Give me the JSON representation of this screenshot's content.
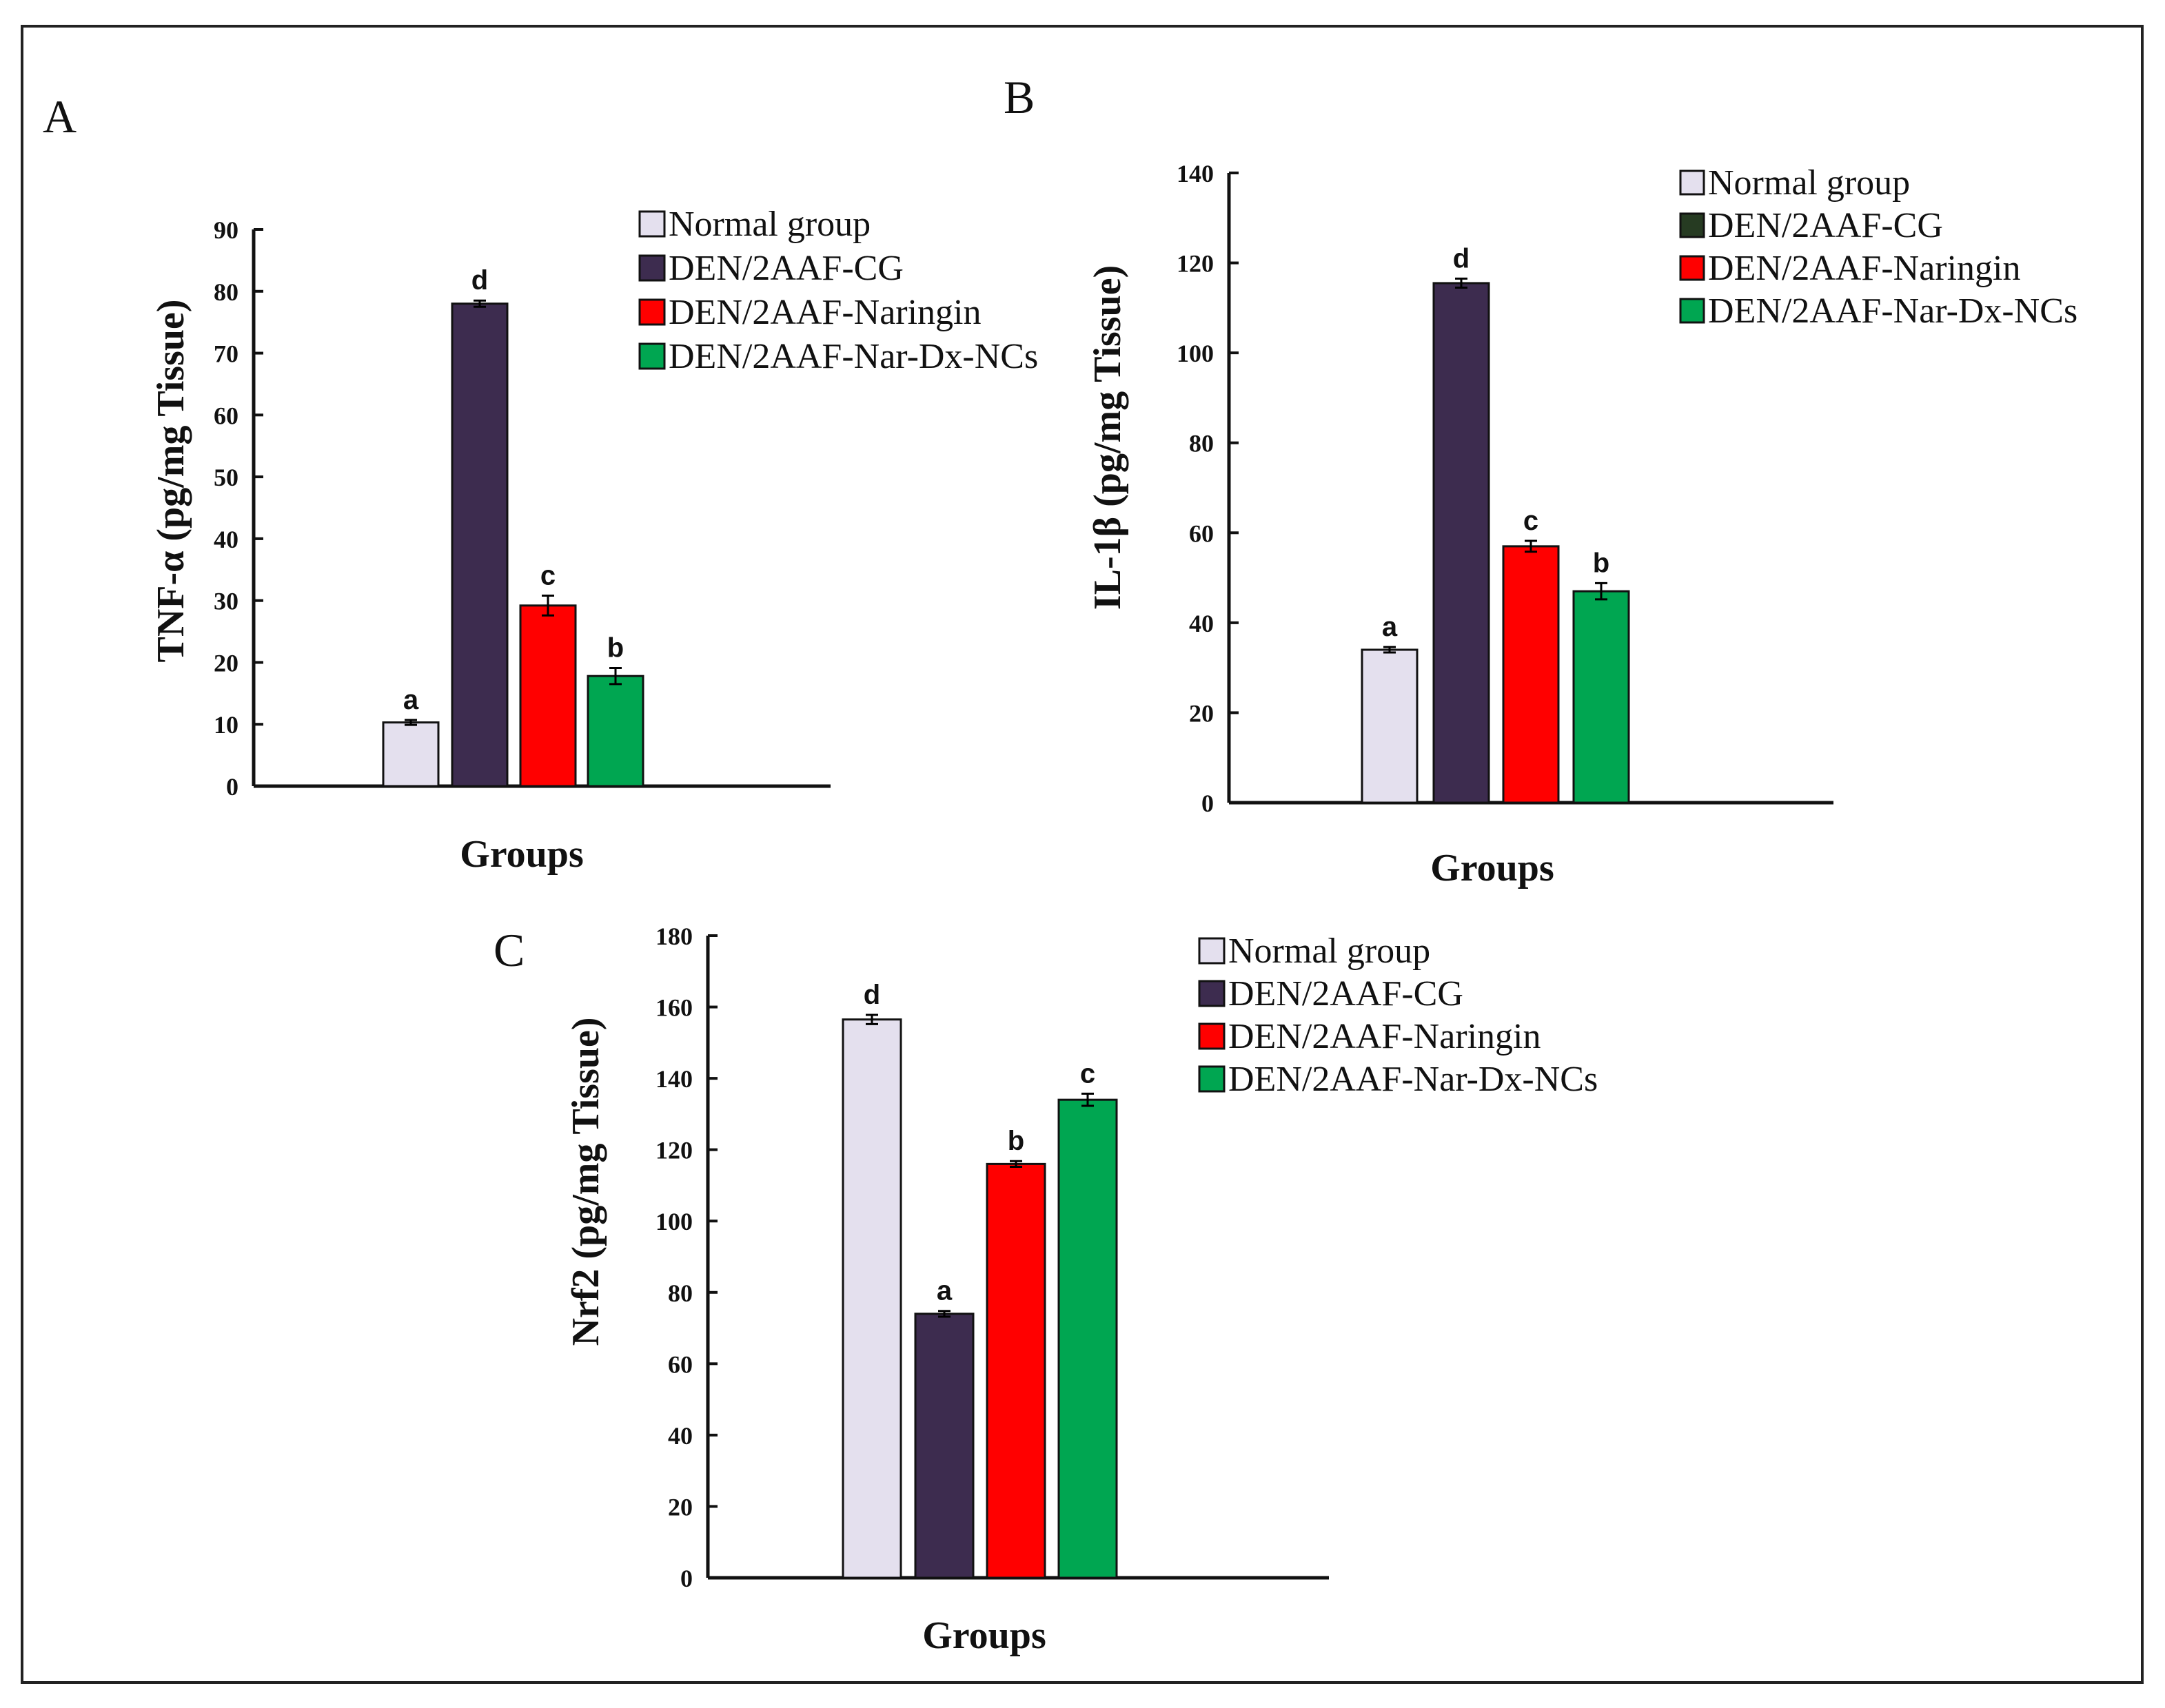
{
  "colors": {
    "normal": "#e4e0ee",
    "den_cg": "#3d2c4f",
    "den_cg_legend_b": "#263b22",
    "naringin": "#ff0000",
    "nanocapsules": "#00a651",
    "axis": "#111111",
    "frame": "#222222"
  },
  "chart_data": [
    {
      "id": "A",
      "panel": "A",
      "type": "bar",
      "title": "",
      "xlabel": "Groups",
      "ylabel": "TNF-α (pg/mg  Tissue)",
      "ylim": [
        0,
        90
      ],
      "yticks": [
        0,
        10,
        20,
        30,
        40,
        50,
        60,
        70,
        80,
        90
      ],
      "grid": false,
      "legend_position": "top-right",
      "series": [
        {
          "name": "Normal group",
          "color": "#e4e0ee",
          "value": 10.3,
          "error": 0.4,
          "label": "a"
        },
        {
          "name": "DEN/2AAF-CG",
          "color": "#3d2c4f",
          "value": 78.0,
          "error": 0.5,
          "label": "d"
        },
        {
          "name": "DEN/2AAF-Naringin",
          "color": "#ff0000",
          "value": 29.2,
          "error": 1.6,
          "label": "c"
        },
        {
          "name": "DEN/2AAF-Nar-Dx-NCs",
          "color": "#00a651",
          "value": 17.8,
          "error": 1.3,
          "label": "b"
        }
      ]
    },
    {
      "id": "B",
      "panel": "B",
      "type": "bar",
      "title": "",
      "xlabel": "Groups",
      "ylabel": "IL-1β (pg/mg  Tissue)",
      "ylim": [
        0,
        140
      ],
      "yticks": [
        0,
        20,
        40,
        60,
        80,
        100,
        120,
        140
      ],
      "grid": false,
      "legend_position": "top-right",
      "series": [
        {
          "name": "Normal group",
          "color": "#e4e0ee",
          "legend_color": "#e4e0ee",
          "value": 34.0,
          "error": 0.6,
          "label": "a"
        },
        {
          "name": "DEN/2AAF-CG",
          "color": "#3d2c4f",
          "legend_color": "#263b22",
          "value": 115.5,
          "error": 1.0,
          "label": "d"
        },
        {
          "name": "DEN/2AAF-Naringin",
          "color": "#ff0000",
          "legend_color": "#ff0000",
          "value": 57.0,
          "error": 1.2,
          "label": "c"
        },
        {
          "name": "DEN/2AAF-Nar-Dx-NCs",
          "color": "#00a651",
          "legend_color": "#00a651",
          "value": 47.0,
          "error": 1.8,
          "label": "b"
        }
      ]
    },
    {
      "id": "C",
      "panel": "C",
      "type": "bar",
      "title": "",
      "xlabel": "Groups",
      "ylabel": "Nrf2 (pg/mg Tissue)",
      "ylim": [
        0,
        180
      ],
      "yticks": [
        0,
        20,
        40,
        60,
        80,
        100,
        120,
        140,
        160,
        180
      ],
      "grid": false,
      "legend_position": "top-right",
      "series": [
        {
          "name": "Normal group",
          "color": "#e4e0ee",
          "value": 156.5,
          "error": 1.3,
          "label": "d"
        },
        {
          "name": "DEN/2AAF-CG",
          "color": "#3d2c4f",
          "value": 74.0,
          "error": 0.8,
          "label": "a"
        },
        {
          "name": "DEN/2AAF-Naringin",
          "color": "#ff0000",
          "value": 116.0,
          "error": 0.8,
          "label": "b"
        },
        {
          "name": "DEN/2AAF-Nar-Dx-NCs",
          "color": "#00a651",
          "value": 134.0,
          "error": 1.7,
          "label": "c"
        }
      ]
    }
  ]
}
